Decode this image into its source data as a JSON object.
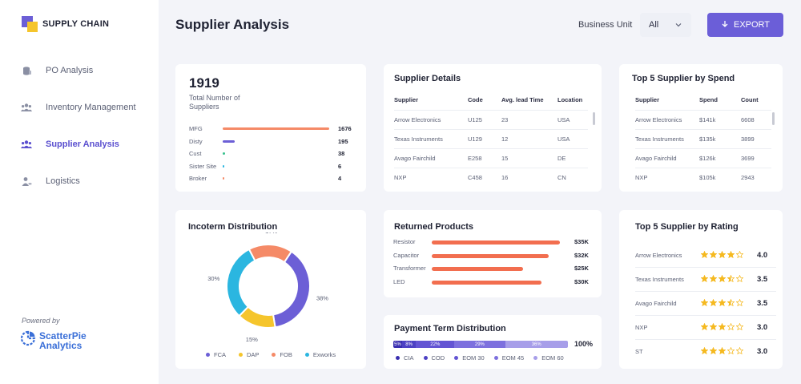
{
  "app": {
    "title": "SUPPLY CHAIN"
  },
  "nav": {
    "items": [
      {
        "label": "PO Analysis",
        "icon": "coins-icon",
        "active": false
      },
      {
        "label": "Inventory Management",
        "icon": "team-icon",
        "active": false
      },
      {
        "label": "Supplier Analysis",
        "icon": "group-icon",
        "active": true
      },
      {
        "label": "Logistics",
        "icon": "person-handshake-icon",
        "active": false
      }
    ]
  },
  "branding": {
    "powered_by": "Powered by",
    "line1": "ScatterPie",
    "line2": "Analytics"
  },
  "header": {
    "title": "Supplier Analysis",
    "business_unit_label": "Business Unit",
    "business_unit_value": "All",
    "export_label": "EXPORT"
  },
  "colors": {
    "accent": "#6b5ed8",
    "orange": "#f26e4f",
    "yellow": "#f5c52c",
    "cyan": "#2bb6e0",
    "purple": "#6c5fd6",
    "green": "#3ac28f"
  },
  "total_suppliers": {
    "value": "1919",
    "label": "Total Number of Suppliers",
    "rows": [
      {
        "label": "MFG",
        "value": "1676",
        "count": 1676,
        "color": "#f58a67"
      },
      {
        "label": "Disty",
        "value": "195",
        "count": 195,
        "color": "#6c5fd6"
      },
      {
        "label": "Cust",
        "value": "38",
        "count": 38,
        "color": "#3ac28f"
      },
      {
        "label": "Sister Site",
        "value": "6",
        "count": 6,
        "color": "#2bb6e0"
      },
      {
        "label": "Broker",
        "value": "4",
        "count": 4,
        "color": "#f58a67"
      }
    ]
  },
  "supplier_details": {
    "title": "Supplier  Details",
    "columns": [
      "Supplier",
      "Code",
      "Avg. lead Time",
      "Location"
    ],
    "rows": [
      [
        "Arrow Electronics",
        "U125",
        "23",
        "USA"
      ],
      [
        "Texas Instruments",
        "U129",
        "12",
        "USA"
      ],
      [
        "Avago Fairchild",
        "E258",
        "15",
        "DE"
      ],
      [
        "NXP",
        "C458",
        "16",
        "CN"
      ]
    ]
  },
  "top_spend": {
    "title": "Top 5 Supplier by Spend",
    "columns": [
      "Supplier",
      "Spend",
      "Count"
    ],
    "rows": [
      [
        "Arrow Electronics",
        "$141k",
        "6608"
      ],
      [
        "Texas Instruments",
        "$135k",
        "3899"
      ],
      [
        "Avago Fairchild",
        "$126k",
        "3699"
      ],
      [
        "NXP",
        "$105k",
        "2943"
      ]
    ]
  },
  "incoterm": {
    "title": "Incoterm Distribution",
    "slices": [
      {
        "name": "FCA",
        "value": 38,
        "label": "38%",
        "color": "#6c5fd6"
      },
      {
        "name": "DAP",
        "value": 15,
        "label": "15%",
        "color": "#f5c52c"
      },
      {
        "name": "FOB",
        "value": 17,
        "label": "17%",
        "color": "#f58a67"
      },
      {
        "name": "Exworks",
        "value": 30,
        "label": "30%",
        "color": "#2bb6e0"
      }
    ]
  },
  "chart_data": [
    {
      "type": "pie",
      "title": "Incoterm Distribution",
      "categories": [
        "FCA",
        "DAP",
        "FOB",
        "Exworks"
      ],
      "values": [
        38,
        15,
        17,
        30
      ],
      "legend": "bottom"
    },
    {
      "type": "bar",
      "title": "Returned Products",
      "categories": [
        "Resistor",
        "Capacitor",
        "Transformer",
        "LED"
      ],
      "values": [
        35,
        32,
        25,
        30
      ],
      "value_labels": [
        "$35K",
        "$32K",
        "$25K",
        "$30K"
      ]
    },
    {
      "type": "bar",
      "title": "Payment Term Distribution",
      "categories": [
        "CIA",
        "COD",
        "EOM 30",
        "EOM 45",
        "EOM 60"
      ],
      "values": [
        5,
        8,
        22,
        29,
        36
      ]
    }
  ],
  "returned_products": {
    "title": "Returned Products",
    "rows": [
      {
        "label": "Resistor",
        "value": "$35K",
        "amount": 35
      },
      {
        "label": "Capacitor",
        "value": "$32K",
        "amount": 32
      },
      {
        "label": "Transformer",
        "value": "$25K",
        "amount": 25
      },
      {
        "label": "LED",
        "value": "$30K",
        "amount": 30
      }
    ]
  },
  "payment_term": {
    "title": "Payment Term Distribution",
    "total": "100%",
    "segments": [
      {
        "name": "CIA",
        "value": 5,
        "label": "5%",
        "color": "#3a2fb0"
      },
      {
        "name": "COD",
        "value": 8,
        "label": "8%",
        "color": "#4d41c4"
      },
      {
        "name": "EOM 30",
        "value": 22,
        "label": "22%",
        "color": "#6354d3"
      },
      {
        "name": "EOM 45",
        "value": 29,
        "label": "29%",
        "color": "#7d70de"
      },
      {
        "name": "EOM 60",
        "value": 36,
        "label": "36%",
        "color": "#a79ee9"
      }
    ]
  },
  "top_rating": {
    "title": "Top 5 Supplier by Rating",
    "rows": [
      {
        "name": "Arrow Electronics",
        "score": "4.0",
        "stars": 4
      },
      {
        "name": "Texas Instruments",
        "score": "3.5",
        "stars": 3.5
      },
      {
        "name": "Avago Fairchild",
        "score": "3.5",
        "stars": 3.5
      },
      {
        "name": "NXP",
        "score": "3.0",
        "stars": 3
      },
      {
        "name": "ST",
        "score": "3.0",
        "stars": 3
      }
    ]
  }
}
